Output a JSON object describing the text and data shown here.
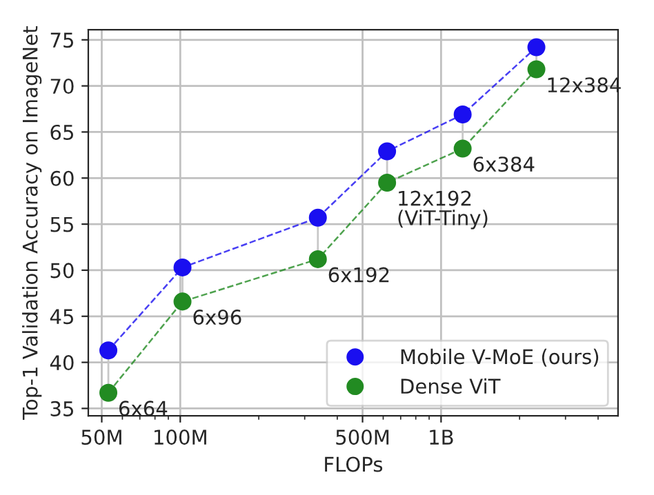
{
  "chart_data": {
    "type": "line",
    "xlabel": "FLOPs",
    "ylabel": "Top-1 Validation Accuracy on ImageNet",
    "x": [
      53000000,
      102000000,
      337000000,
      621000000,
      1210000000,
      2320000000
    ],
    "series": [
      {
        "name": "Mobile V-MoE (ours)",
        "color": "#1a0ff0",
        "values": [
          41.3,
          50.3,
          55.7,
          62.9,
          66.9,
          74.2
        ]
      },
      {
        "name": "Dense ViT",
        "color": "#228b22",
        "values": [
          36.7,
          46.6,
          51.2,
          59.5,
          63.2,
          71.8
        ]
      }
    ],
    "log": "x",
    "xlim": [
      44400000,
      4770000000
    ],
    "xticks": [
      {
        "value": 50000000,
        "label": "50M"
      },
      {
        "value": 100000000,
        "label": "100M"
      },
      {
        "value": 500000000,
        "label": "500M"
      },
      {
        "value": 1000000000,
        "label": "1B"
      }
    ],
    "ylim": [
      34.2,
      76.1
    ],
    "yticks": [
      35,
      40,
      45,
      50,
      55,
      60,
      65,
      70,
      75
    ],
    "annotations": [
      {
        "text": "6x64",
        "x": 53000000,
        "y": 36.7
      },
      {
        "text": "6x96",
        "x": 102000000,
        "y": 46.6
      },
      {
        "text": "6x192",
        "x": 337000000,
        "y": 51.2
      },
      {
        "text": "12x192\n(ViT-Tiny)",
        "x": 621000000,
        "y": 59.5
      },
      {
        "text": "6x384",
        "x": 1210000000,
        "y": 63.2
      },
      {
        "text": "12x384",
        "x": 2320000000,
        "y": 71.8
      }
    ],
    "grid": true,
    "legend": "bottom right",
    "marker": "circle",
    "line_style": "dashed"
  }
}
